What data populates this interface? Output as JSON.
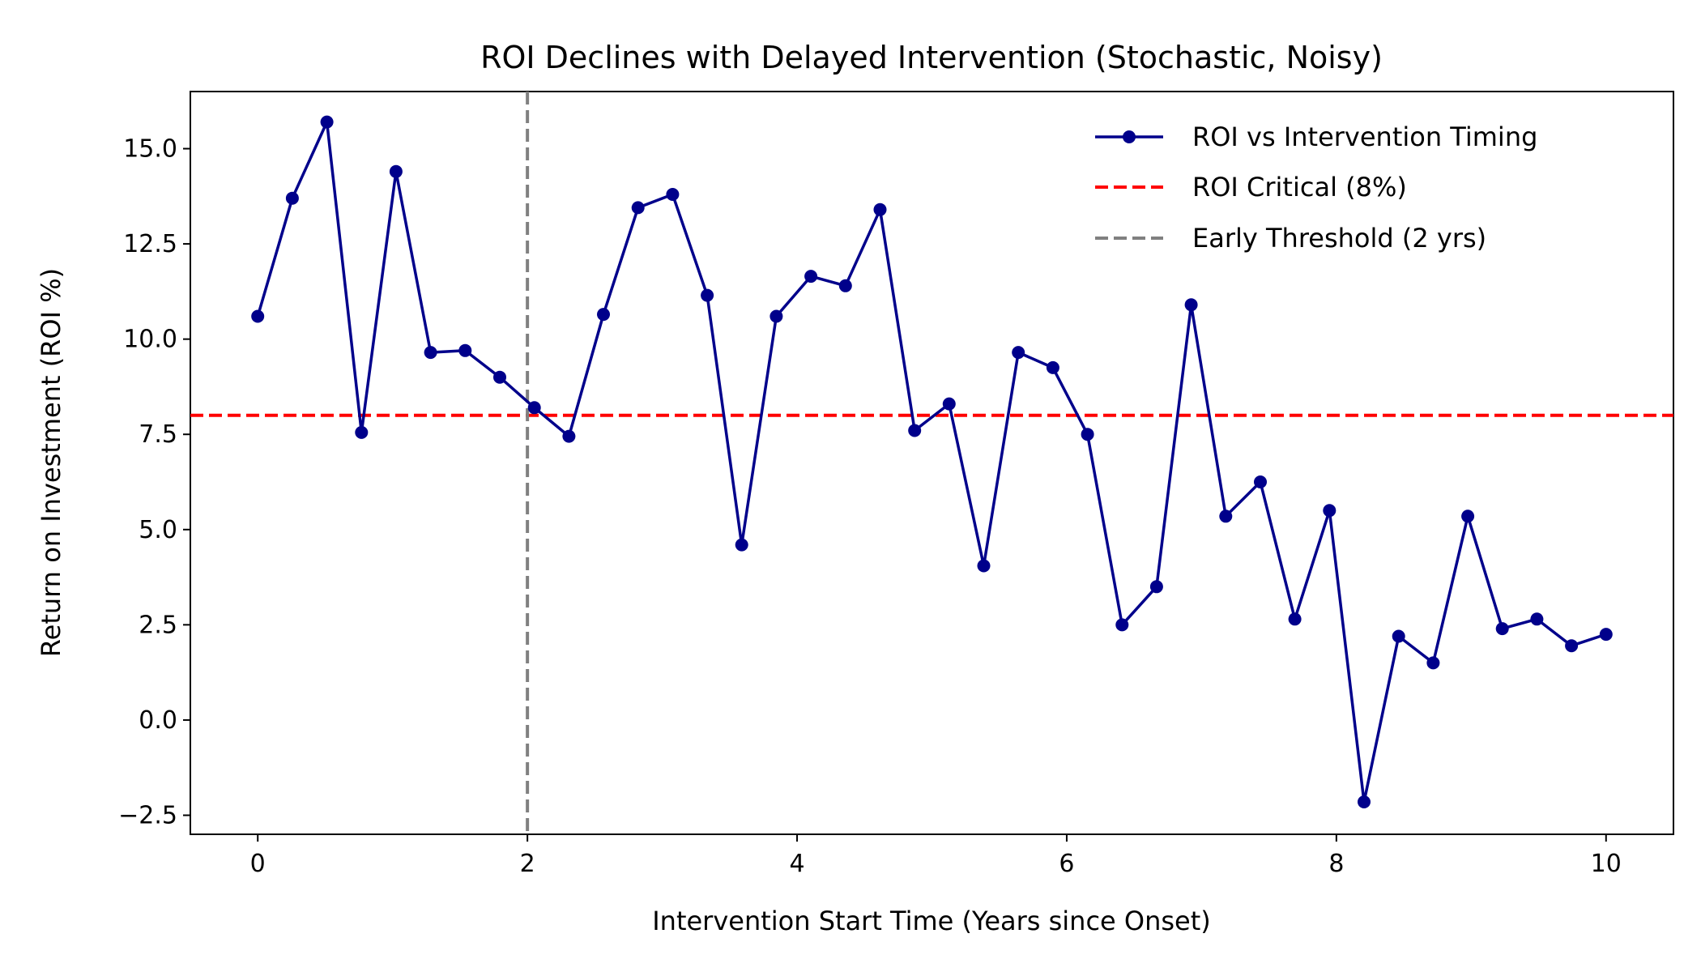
{
  "chart_data": {
    "type": "line",
    "title": "ROI Declines with Delayed Intervention (Stochastic, Noisy)",
    "xlabel": "Intervention Start Time (Years since Onset)",
    "ylabel": "Return on Investment (ROI %)",
    "xlim": [
      -0.5,
      10.5
    ],
    "ylim": [
      -3.0,
      16.5
    ],
    "xticks": [
      0,
      2,
      4,
      6,
      8,
      10
    ],
    "xtick_labels": [
      "0",
      "2",
      "4",
      "6",
      "8",
      "10"
    ],
    "yticks": [
      -2.5,
      0.0,
      2.5,
      5.0,
      7.5,
      10.0,
      12.5,
      15.0
    ],
    "ytick_labels": [
      "−2.5",
      "0.0",
      "2.5",
      "5.0",
      "7.5",
      "10.0",
      "12.5",
      "15.0"
    ],
    "grid": false,
    "legend_position": "top-right",
    "series": [
      {
        "name": "ROI vs Intervention Timing",
        "color": "#00008b",
        "style": "line-with-markers",
        "x": [
          0,
          0.2564,
          0.5128,
          0.7692,
          1.0256,
          1.2821,
          1.5385,
          1.7949,
          2.0513,
          2.3077,
          2.5641,
          2.8205,
          3.0769,
          3.3333,
          3.5897,
          3.8462,
          4.1026,
          4.359,
          4.6154,
          4.8718,
          5.1282,
          5.3846,
          5.641,
          5.8974,
          6.1538,
          6.4103,
          6.6667,
          6.9231,
          7.1795,
          7.4359,
          7.6923,
          7.9487,
          8.2051,
          8.4615,
          8.7179,
          8.9744,
          9.2308,
          9.4872,
          9.7436,
          10.0
        ],
        "y": [
          10.6,
          13.7,
          15.7,
          7.55,
          14.4,
          9.65,
          9.7,
          9.0,
          8.2,
          7.45,
          10.65,
          13.45,
          13.8,
          11.15,
          4.6,
          10.6,
          11.65,
          11.4,
          13.4,
          7.6,
          8.3,
          4.05,
          9.65,
          9.25,
          7.5,
          2.5,
          3.5,
          10.9,
          5.35,
          6.25,
          2.65,
          5.5,
          -2.15,
          2.2,
          1.5,
          5.35,
          2.4,
          2.65,
          1.95,
          2.25
        ]
      }
    ],
    "reference_lines": [
      {
        "name": "ROI Critical (8%)",
        "orientation": "horizontal",
        "value": 8,
        "color": "#ff0000",
        "style": "dashed"
      },
      {
        "name": "Early Threshold (2 yrs)",
        "orientation": "vertical",
        "value": 2,
        "color": "#808080",
        "style": "dashed"
      }
    ]
  }
}
